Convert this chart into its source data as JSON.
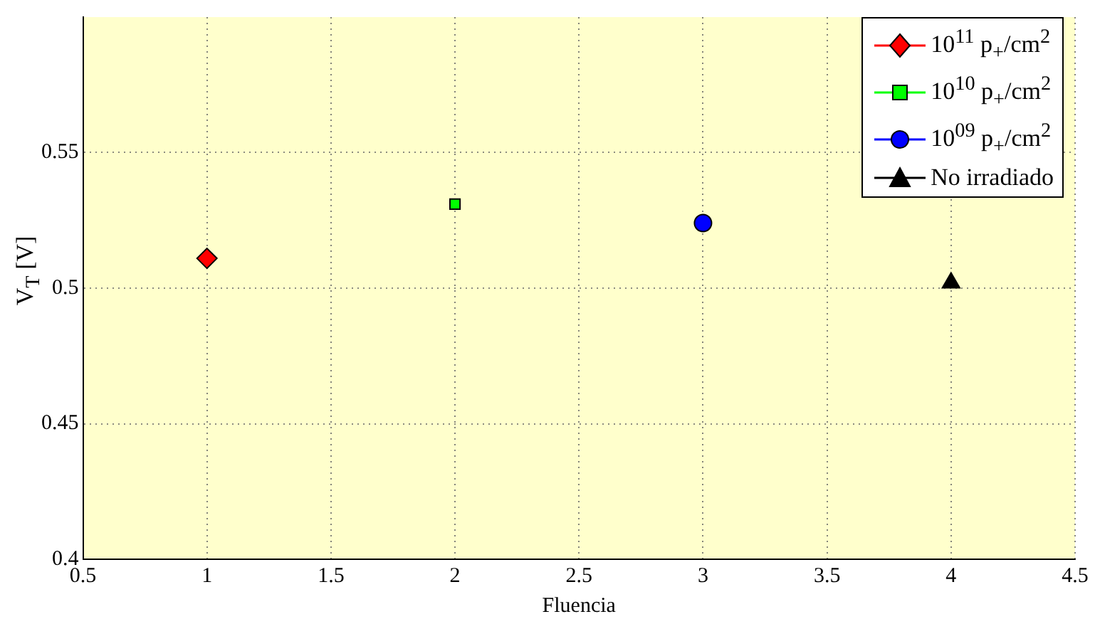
{
  "chart_data": {
    "type": "scatter",
    "xlabel": "Fluencia",
    "ylabel": "V$_{T}$ [V]",
    "xlim": [
      0.5,
      4.5
    ],
    "xticks": [
      0.5,
      1,
      1.5,
      2,
      2.5,
      3,
      3.5,
      4,
      4.5
    ],
    "ylim": [
      0.4,
      0.6
    ],
    "yticks": [
      0.4,
      0.45,
      0.5,
      0.55
    ],
    "grid": true,
    "legend": "top right",
    "series": [
      {
        "name": "10$^{11}$ p$_{+}$/cm$^{2}$",
        "color": "#ff0000",
        "marker": "diamond",
        "x": [
          1
        ],
        "values": [
          0.511
        ]
      },
      {
        "name": "10$^{10}$ p$_{+}$/cm$^{2}$",
        "color": "#00ff00",
        "marker": "square",
        "x": [
          2
        ],
        "values": [
          0.531
        ]
      },
      {
        "name": "10$^{09}$ p$_{+}$/cm$^{2}$",
        "color": "#0000ff",
        "marker": "circle",
        "x": [
          3
        ],
        "values": [
          0.524
        ]
      },
      {
        "name": "No irradiado",
        "color": "#000000",
        "marker": "triangle",
        "x": [
          4
        ],
        "values": [
          0.502
        ]
      }
    ]
  }
}
